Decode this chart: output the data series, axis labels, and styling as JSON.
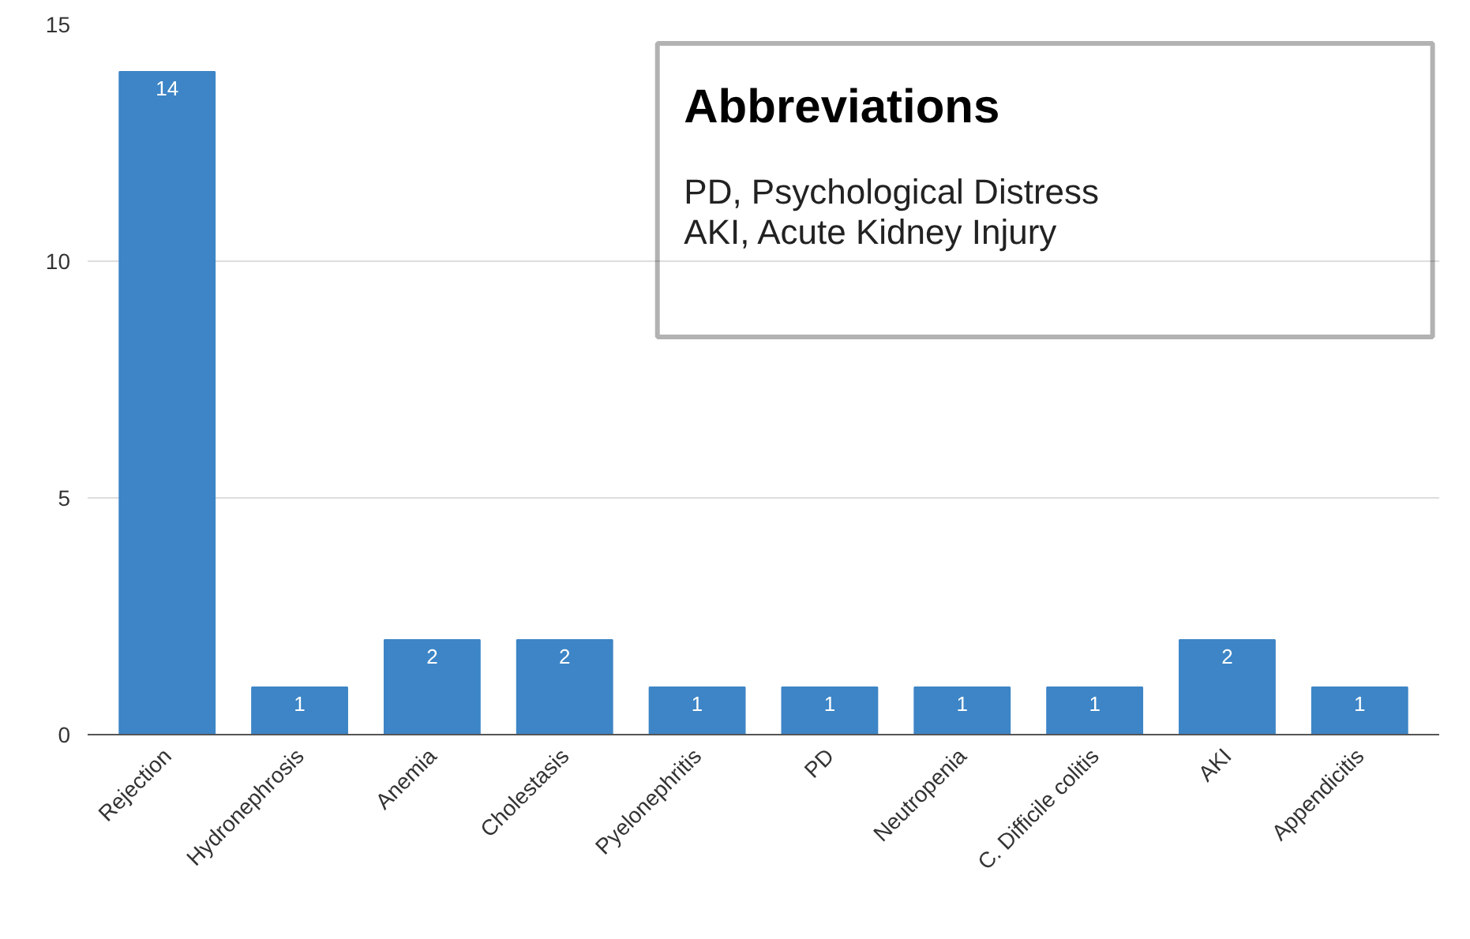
{
  "chart_data": {
    "type": "bar",
    "categories": [
      "Rejection",
      "Hydronephrosis",
      "Anemia",
      "Cholestasis",
      "Pyelonephritis",
      "PD",
      "Neutropenia",
      "C. Difficile colitis",
      "AKI",
      "Appendicitis"
    ],
    "values": [
      14,
      1,
      2,
      2,
      1,
      1,
      1,
      1,
      2,
      1
    ],
    "color": "#3d85c6",
    "ylim": [
      0,
      15
    ],
    "yticks": [
      0,
      5,
      10,
      15
    ],
    "grid": "y",
    "data_labels": true,
    "annotations": [
      "Abbreviations",
      "PD, Psychological Distress",
      "AKI, Acute Kidney Injury"
    ]
  }
}
